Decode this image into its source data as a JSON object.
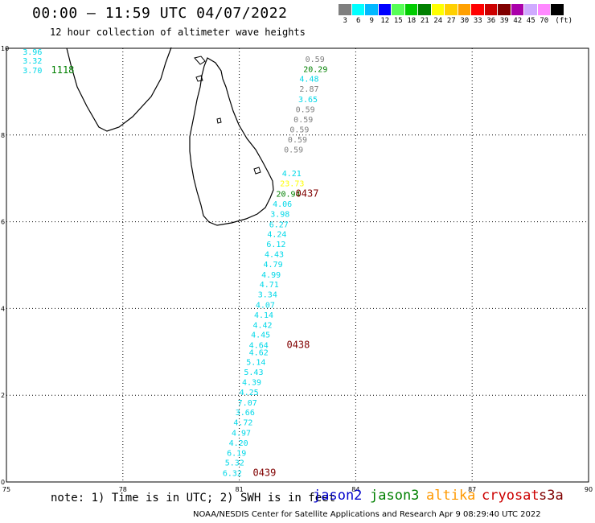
{
  "header": {
    "title": "00:00 – 11:59 UTC 04/07/2022",
    "subtitle": "12 hour collection of altimeter wave heights"
  },
  "color_scale": {
    "colors": [
      "#7f7f7f",
      "#00ffff",
      "#00b8ff",
      "#0000ff",
      "#55ff55",
      "#00cc00",
      "#008000",
      "#ffff00",
      "#ffd000",
      "#ffa000",
      "#ff0000",
      "#cc0000",
      "#800000",
      "#aa00aa",
      "#cfaaff",
      "#ff88ff",
      "#000000"
    ],
    "labels": [
      "3",
      "6",
      "9",
      "12",
      "15",
      "18",
      "21",
      "24",
      "27",
      "30",
      "33",
      "36",
      "39",
      "42",
      "45",
      "70",
      "(ft)"
    ]
  },
  "axes": {
    "x_ticks": [
      "75",
      "78",
      "81",
      "84",
      "87",
      "90"
    ],
    "y_ticks": [
      "0",
      "2",
      "4",
      "6",
      "8",
      "10"
    ]
  },
  "chart_data": {
    "type": "scatter",
    "xlim": [
      75,
      90
    ],
    "ylim": [
      0,
      10
    ],
    "grid": true,
    "points": [
      {
        "lon": 75.42,
        "lat": 9.93,
        "label": "3.96",
        "color": "#00d8e8"
      },
      {
        "lon": 75.42,
        "lat": 9.72,
        "label": "3.32",
        "color": "#00d8e8"
      },
      {
        "lon": 75.42,
        "lat": 9.5,
        "label": "3.70",
        "color": "#00d8e8"
      },
      {
        "lon": 76.15,
        "lat": 9.5,
        "label": "1118",
        "color": "#008000"
      },
      {
        "lon": 82.7,
        "lat": 9.76,
        "label": "0.59",
        "color": "#7f7f7f"
      },
      {
        "lon": 82.65,
        "lat": 9.53,
        "label": "20.29",
        "color": "#008000"
      },
      {
        "lon": 82.55,
        "lat": 9.3,
        "label": "4.48",
        "color": "#00d8e8"
      },
      {
        "lon": 82.55,
        "lat": 9.07,
        "label": "2.87",
        "color": "#7f7f7f"
      },
      {
        "lon": 82.52,
        "lat": 8.83,
        "label": "3.65",
        "color": "#00d8e8"
      },
      {
        "lon": 82.45,
        "lat": 8.6,
        "label": "0.59",
        "color": "#7f7f7f"
      },
      {
        "lon": 82.4,
        "lat": 8.37,
        "label": "0.59",
        "color": "#7f7f7f"
      },
      {
        "lon": 82.3,
        "lat": 8.14,
        "label": "0.59",
        "color": "#7f7f7f"
      },
      {
        "lon": 82.25,
        "lat": 7.9,
        "label": "0.59",
        "color": "#7f7f7f"
      },
      {
        "lon": 82.15,
        "lat": 7.67,
        "label": "0.59",
        "color": "#7f7f7f"
      },
      {
        "lon": 82.1,
        "lat": 7.12,
        "label": "4.21",
        "color": "#00d8e8"
      },
      {
        "lon": 82.05,
        "lat": 6.89,
        "label": "23.73",
        "color": "#ffff00"
      },
      {
        "lon": 81.95,
        "lat": 6.65,
        "label": "20.94",
        "color": "#008000"
      },
      {
        "lon": 82.45,
        "lat": 6.65,
        "label": "0437",
        "color": "#800000"
      },
      {
        "lon": 81.86,
        "lat": 6.42,
        "label": "4.06",
        "color": "#00d8e8"
      },
      {
        "lon": 81.8,
        "lat": 6.19,
        "label": "3.98",
        "color": "#00d8e8"
      },
      {
        "lon": 81.77,
        "lat": 5.95,
        "label": "6.27",
        "color": "#00d8e8"
      },
      {
        "lon": 81.72,
        "lat": 5.72,
        "label": "4.24",
        "color": "#00d8e8"
      },
      {
        "lon": 81.7,
        "lat": 5.49,
        "label": "6.12",
        "color": "#00d8e8"
      },
      {
        "lon": 81.65,
        "lat": 5.26,
        "label": "4.43",
        "color": "#00d8e8"
      },
      {
        "lon": 81.62,
        "lat": 5.03,
        "label": "4.79",
        "color": "#00d8e8"
      },
      {
        "lon": 81.57,
        "lat": 4.79,
        "label": "4.99",
        "color": "#00d8e8"
      },
      {
        "lon": 81.52,
        "lat": 4.56,
        "label": "4.71",
        "color": "#00d8e8"
      },
      {
        "lon": 81.48,
        "lat": 4.33,
        "label": "3.34",
        "color": "#00d8e8"
      },
      {
        "lon": 81.42,
        "lat": 4.09,
        "label": "4.07",
        "color": "#00d8e8"
      },
      {
        "lon": 81.38,
        "lat": 3.86,
        "label": "4.14",
        "color": "#00d8e8"
      },
      {
        "lon": 81.35,
        "lat": 3.63,
        "label": "4.42",
        "color": "#00d8e8"
      },
      {
        "lon": 81.3,
        "lat": 3.4,
        "label": "4.45",
        "color": "#00d8e8"
      },
      {
        "lon": 81.25,
        "lat": 3.16,
        "label": "4.64",
        "color": "#00d8e8"
      },
      {
        "lon": 81.25,
        "lat": 3.0,
        "label": "4.62",
        "color": "#00d8e8"
      },
      {
        "lon": 82.22,
        "lat": 3.16,
        "label": "0438",
        "color": "#800000"
      },
      {
        "lon": 81.18,
        "lat": 2.77,
        "label": "5.14",
        "color": "#00d8e8"
      },
      {
        "lon": 81.12,
        "lat": 2.54,
        "label": "5.43",
        "color": "#00d8e8"
      },
      {
        "lon": 81.07,
        "lat": 2.31,
        "label": "4.39",
        "color": "#00d8e8"
      },
      {
        "lon": 81.0,
        "lat": 2.08,
        "label": "4.25",
        "color": "#00d8e8"
      },
      {
        "lon": 80.96,
        "lat": 1.84,
        "label": "7.07",
        "color": "#00d8e8"
      },
      {
        "lon": 80.9,
        "lat": 1.61,
        "label": "3.66",
        "color": "#00d8e8"
      },
      {
        "lon": 80.85,
        "lat": 1.38,
        "label": "4.72",
        "color": "#00d8e8"
      },
      {
        "lon": 80.8,
        "lat": 1.14,
        "label": "4.97",
        "color": "#00d8e8"
      },
      {
        "lon": 80.73,
        "lat": 0.91,
        "label": "4.20",
        "color": "#00d8e8"
      },
      {
        "lon": 80.68,
        "lat": 0.68,
        "label": "6.19",
        "color": "#00d8e8"
      },
      {
        "lon": 80.63,
        "lat": 0.45,
        "label": "5.32",
        "color": "#00d8e8"
      },
      {
        "lon": 80.57,
        "lat": 0.21,
        "label": "6.32",
        "color": "#00d8e8"
      },
      {
        "lon": 81.35,
        "lat": 0.21,
        "label": "0439",
        "color": "#800000"
      }
    ]
  },
  "footer": {
    "note": "note: 1) Time is in UTC; 2) SWH is in feet",
    "credit": "NOAA/NESDIS Center for Satellite Applications and Research   Apr  9 08:29:40 UTC 2022",
    "satellites": [
      {
        "name": "jason2",
        "color": "#0000cc"
      },
      {
        "name": "jason3",
        "color": "#008000"
      },
      {
        "name": "altika",
        "color": "#ff9900"
      },
      {
        "name": "cryosat",
        "color": "#cc0000"
      },
      {
        "name": "s3a",
        "color": "#800000"
      }
    ]
  }
}
